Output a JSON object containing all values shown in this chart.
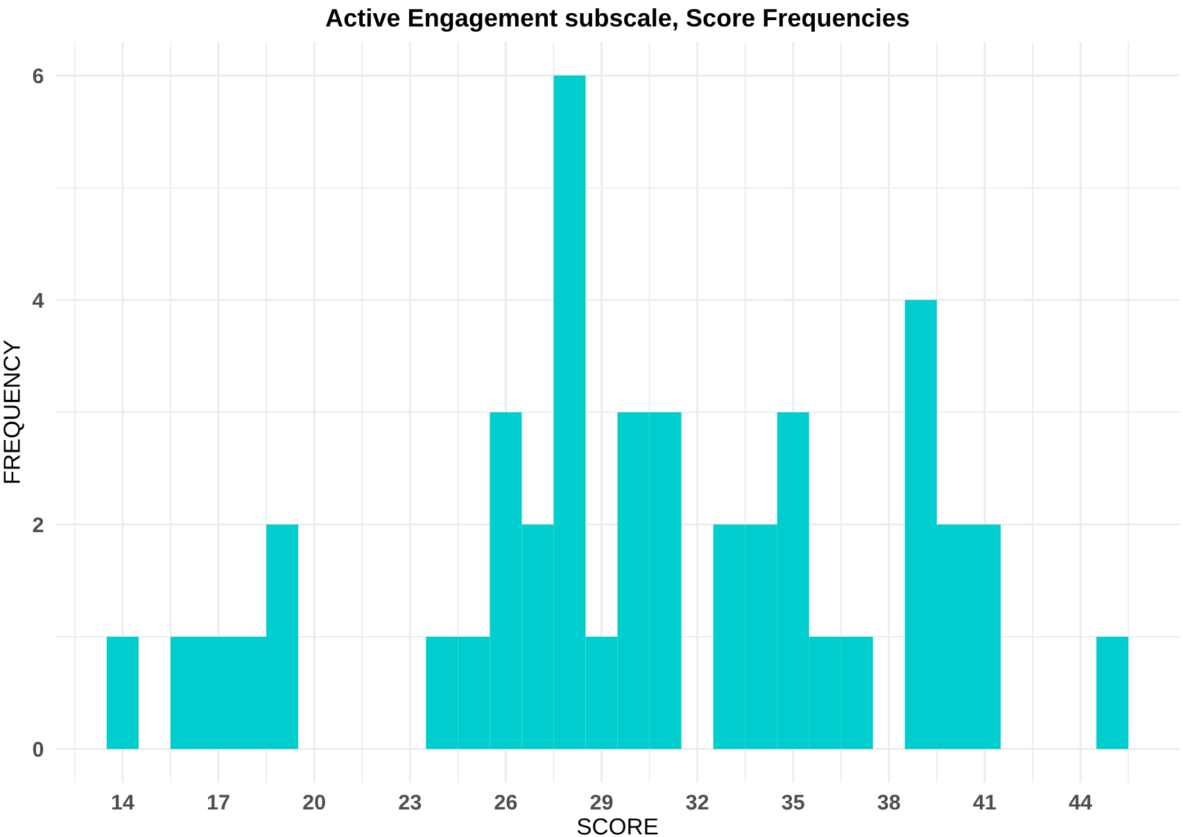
{
  "chart_data": {
    "type": "histogram",
    "title": "Active Engagement subscale, Score Frequencies",
    "xlabel": "SCORE",
    "ylabel": "FREQUENCY",
    "bins": [
      13.5,
      14.5,
      15.5,
      16.5,
      17.5,
      18.5,
      19.5,
      20.5,
      21.5,
      22.5,
      23.5,
      24.5,
      25.5,
      26.5,
      27.5,
      28.5,
      29.5,
      30.5,
      31.5,
      32.5,
      33.5,
      34.5,
      35.5,
      36.5,
      37.5,
      38.5,
      39.5,
      40.5,
      41.5,
      42.5,
      43.5,
      44.5,
      45.5
    ],
    "values": [
      1,
      0,
      1,
      1,
      1,
      2,
      0,
      0,
      0,
      0,
      1,
      1,
      3,
      2,
      6,
      1,
      3,
      3,
      0,
      2,
      2,
      3,
      1,
      1,
      0,
      4,
      2,
      2,
      0,
      0,
      0,
      1
    ],
    "color": "#00cdcd",
    "xlim": [
      11.9,
      47.1
    ],
    "xticks": [
      14,
      17,
      20,
      23,
      26,
      29,
      32,
      35,
      38,
      41,
      44
    ],
    "ylim": [
      -0.3,
      6.3
    ],
    "yticks": [
      0,
      2,
      4,
      6
    ],
    "grid": true
  }
}
